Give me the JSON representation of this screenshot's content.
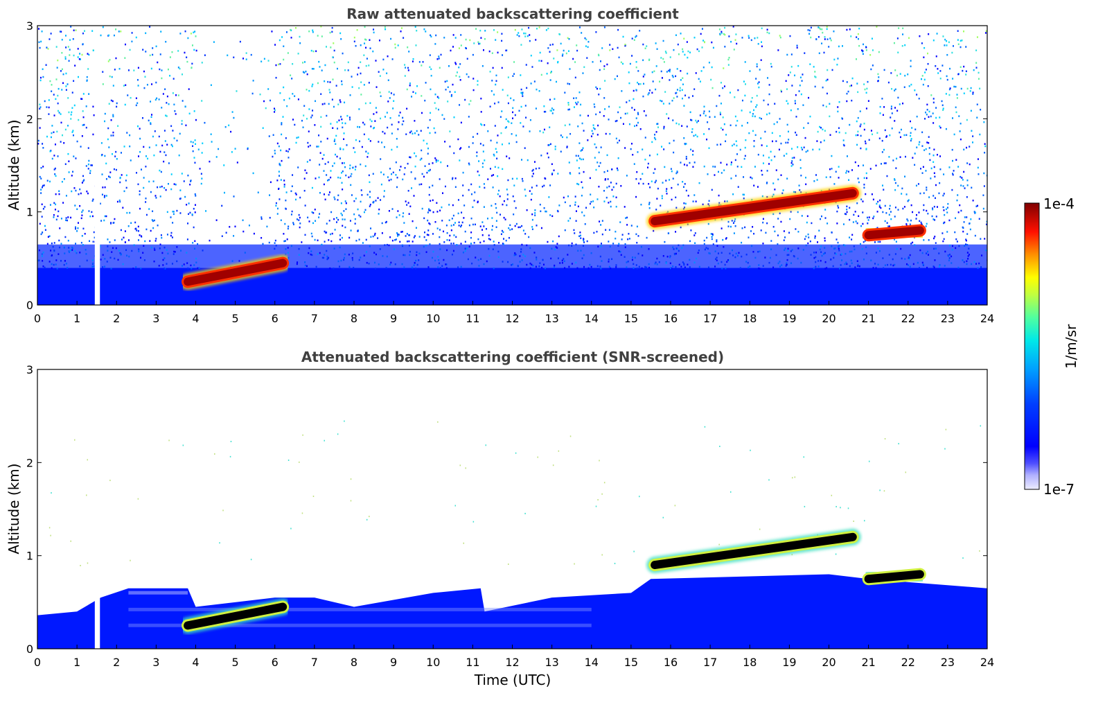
{
  "chart_data": [
    {
      "type": "heatmap",
      "title": "Raw attenuated backscattering coefficient",
      "xlabel": "",
      "ylabel": "Altitude (km)",
      "xlim": [
        0,
        24
      ],
      "ylim": [
        0,
        3
      ],
      "x_ticks": [
        "0",
        "1",
        "2",
        "3",
        "4",
        "5",
        "6",
        "7",
        "8",
        "9",
        "10",
        "11",
        "12",
        "13",
        "14",
        "15",
        "16",
        "17",
        "18",
        "19",
        "20",
        "21",
        "22",
        "23",
        "24"
      ],
      "y_ticks": [
        "0",
        "1",
        "2",
        "3"
      ],
      "grid": false,
      "features": [
        {
          "kind": "cloud",
          "t_start": 3.8,
          "t_end": 6.2,
          "alt_start": 0.25,
          "alt_end": 0.45
        },
        {
          "kind": "cloud",
          "t_start": 15.6,
          "t_end": 20.6,
          "alt_start": 0.9,
          "alt_end": 1.2
        },
        {
          "kind": "cloud",
          "t_start": 21.0,
          "t_end": 22.3,
          "alt_start": 0.75,
          "alt_end": 0.8
        },
        {
          "kind": "data-gap",
          "t_start": 1.45,
          "t_end": 1.58
        }
      ]
    },
    {
      "type": "heatmap",
      "title": "Attenuated backscattering coefficient (SNR-screened)",
      "xlabel": "Time (UTC)",
      "ylabel": "Altitude (km)",
      "xlim": [
        0,
        24
      ],
      "ylim": [
        0,
        3
      ],
      "x_ticks": [
        "0",
        "1",
        "2",
        "3",
        "4",
        "5",
        "6",
        "7",
        "8",
        "9",
        "10",
        "11",
        "12",
        "13",
        "14",
        "15",
        "16",
        "17",
        "18",
        "19",
        "20",
        "21",
        "22",
        "23",
        "24"
      ],
      "y_ticks": [
        "0",
        "1",
        "2",
        "3"
      ],
      "grid": false,
      "boundary_layer_top_km": [
        [
          0,
          0.36
        ],
        [
          1.0,
          0.4
        ],
        [
          1.6,
          0.55
        ],
        [
          2.3,
          0.65
        ],
        [
          3.8,
          0.65
        ],
        [
          4.0,
          0.45
        ],
        [
          6.0,
          0.55
        ],
        [
          7.0,
          0.55
        ],
        [
          8.0,
          0.45
        ],
        [
          10.0,
          0.6
        ],
        [
          11.2,
          0.65
        ],
        [
          11.3,
          0.4
        ],
        [
          13.0,
          0.55
        ],
        [
          15.0,
          0.6
        ],
        [
          15.5,
          0.75
        ],
        [
          20.0,
          0.8
        ],
        [
          21.0,
          0.75
        ],
        [
          24.0,
          0.65
        ]
      ],
      "features": [
        {
          "kind": "cloud",
          "t_start": 3.8,
          "t_end": 6.2,
          "alt_start": 0.25,
          "alt_end": 0.45
        },
        {
          "kind": "cloud",
          "t_start": 15.6,
          "t_end": 20.6,
          "alt_start": 0.9,
          "alt_end": 1.2
        },
        {
          "kind": "cloud",
          "t_start": 21.0,
          "t_end": 22.3,
          "alt_start": 0.75,
          "alt_end": 0.8
        },
        {
          "kind": "data-gap",
          "t_start": 1.45,
          "t_end": 1.58
        }
      ]
    }
  ],
  "colorbar": {
    "label": "1/m/sr",
    "max_label": "1e-4",
    "min_label": "1e-7",
    "scale": "log",
    "colors": [
      "#ececff",
      "#c0c0ff",
      "#8080ff",
      "#0000ff",
      "#0050ff",
      "#00a0ff",
      "#00e0ff",
      "#40ffbf",
      "#a0ff60",
      "#ffff00",
      "#ffb000",
      "#ff6000",
      "#ff0000",
      "#c00000",
      "#800000"
    ]
  }
}
